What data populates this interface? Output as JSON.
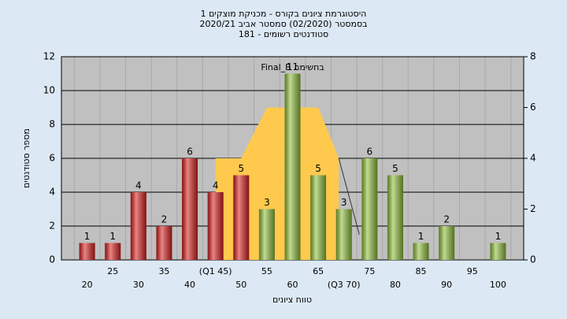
{
  "chart_data": {
    "type": "bar",
    "title": [
      "היסטוגרמת ציונים בקורס - מכניקת מוצקים 1",
      "בסמסטר  (02/2020)  סמסטר אביב 2020/21",
      "סטודנטים רשומים - 181"
    ],
    "xlabel": "טווח ציונים",
    "ylabel": "מספר סטודנטים",
    "annotation": "Final_B בחשימה",
    "categories": [
      "20",
      "25",
      "30",
      "35",
      "40",
      "(Q1 45)",
      "50",
      "55",
      "60",
      "65",
      "(Q3 70)",
      "75",
      "80",
      "85",
      "90",
      "95",
      "100"
    ],
    "values": [
      1,
      1,
      4,
      2,
      6,
      4,
      5,
      3,
      11,
      5,
      3,
      6,
      5,
      1,
      2,
      0,
      1
    ],
    "colors": [
      "#d92020",
      "#d92020",
      "#d92020",
      "#d92020",
      "#d92020",
      "#d92020",
      "#d92020",
      "#8fbf3a",
      "#8fbf3a",
      "#8fbf3a",
      "#8fbf3a",
      "#8fbf3a",
      "#8fbf3a",
      "#8fbf3a",
      "#8fbf3a",
      "#8fbf3a",
      "#8fbf3a"
    ],
    "ylim": [
      0,
      12
    ],
    "yticks": [
      0,
      2,
      4,
      6,
      8,
      10,
      12
    ],
    "y2lim": [
      0,
      8
    ],
    "y2ticks": [
      0,
      2,
      4,
      6,
      8
    ],
    "overlay": {
      "axis": "y2",
      "color": "#ffc94d",
      "x": [
        45,
        50,
        55,
        65,
        69,
        73
      ],
      "values": [
        4,
        4,
        6,
        6,
        4,
        1
      ]
    },
    "grid": true
  }
}
